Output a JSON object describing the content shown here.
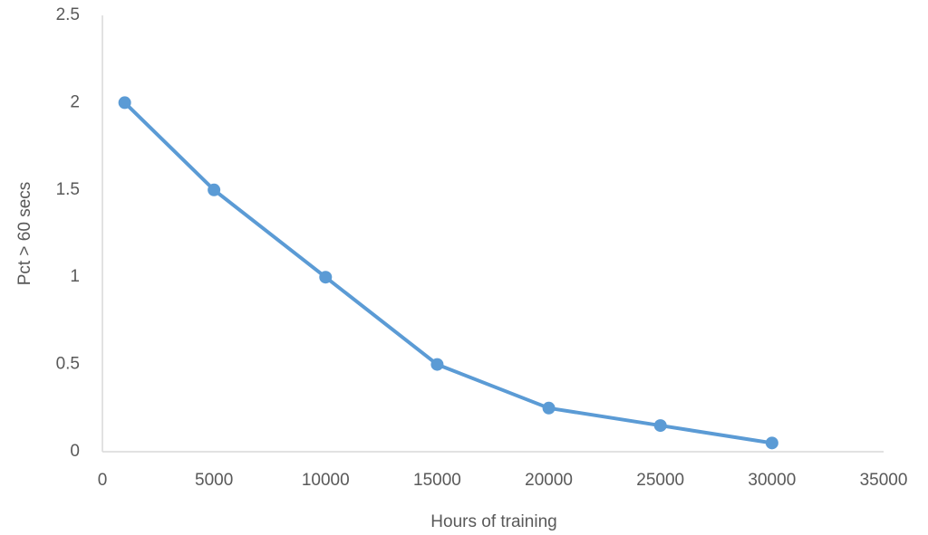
{
  "chart_data": {
    "type": "line",
    "x_label": "Hours of training",
    "y_label": "Pct > 60 secs",
    "x": [
      1000,
      5000,
      10000,
      15000,
      20000,
      25000,
      30000
    ],
    "values": [
      2,
      1.5,
      1,
      0.5,
      0.25,
      0.15,
      0.05
    ],
    "color": "#5b9bd5",
    "xlim": [
      0,
      35000
    ],
    "xticks": [
      0,
      5000,
      10000,
      15000,
      20000,
      25000,
      30000,
      35000
    ],
    "ylim": [
      0,
      2.5
    ],
    "yticks": [
      0,
      0.5,
      1,
      1.5,
      2,
      2.5
    ],
    "grid": false
  }
}
